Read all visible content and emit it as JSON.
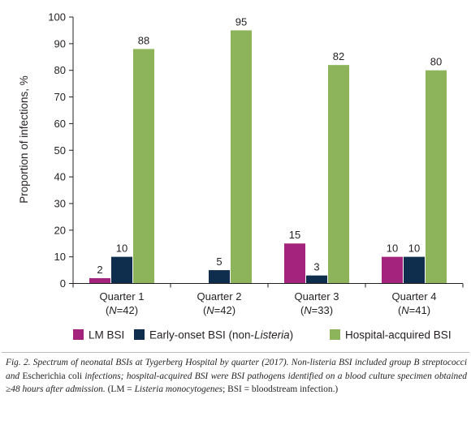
{
  "chart_data": {
    "type": "bar",
    "ylabel": "Proportion of infections, %",
    "ylim": [
      0,
      100
    ],
    "yticks": [
      0,
      10,
      20,
      30,
      40,
      50,
      60,
      70,
      80,
      90,
      100
    ],
    "categories": [
      {
        "label": "Quarter 1",
        "n_text": "(N=42)",
        "n_pre": "(",
        "n_var": "N",
        "n_post": "=42)"
      },
      {
        "label": "Quarter 2",
        "n_text": "(N=42)",
        "n_pre": "(",
        "n_var": "N",
        "n_post": "=42)"
      },
      {
        "label": "Quarter 3",
        "n_text": "(N=33)",
        "n_pre": "(",
        "n_var": "N",
        "n_post": "=33)"
      },
      {
        "label": "Quarter 4",
        "n_text": "(N=41)",
        "n_pre": "(",
        "n_var": "N",
        "n_post": "=41)"
      }
    ],
    "series": [
      {
        "name": "LM BSI",
        "color": "#a3237d",
        "values": [
          2,
          0,
          15,
          10
        ],
        "labels": [
          "2",
          "",
          "15",
          "10"
        ]
      },
      {
        "name": "Early-onset BSI (non-Listeria)",
        "name_pre": "Early-onset BSI (non-",
        "name_italic": "Listeria",
        "name_post": ")",
        "color": "#0f2d4d",
        "values": [
          10,
          5,
          3,
          10
        ],
        "labels": [
          "10",
          "5",
          "3",
          "10"
        ]
      },
      {
        "name": "Hospital-acquired BSI",
        "color": "#8db45a",
        "values": [
          88,
          95,
          82,
          80
        ],
        "labels": [
          "88",
          "95",
          "82",
          "80"
        ]
      }
    ],
    "grid": false,
    "legend": "bottom"
  },
  "caption": {
    "text": "Fig. 2. Spectrum of neonatal BSIs at Tygerberg Hospital by quarter (2017). Non-listeria BSI included group B streptococci and Escherichia coli infections; hospital-acquired BSI were BSI pathogens identified on a blood culture specimen obtained ≥48 hours after admission. (LM = Listeria monocytogenes; BSI = bloodstream infection.)",
    "p1": "Fig. 2. Spectrum of neonatal BSIs at Tygerberg Hospital by quarter (2017). Non-listeria BSI included group B streptococci and ",
    "p2": "Escherichia coli",
    "p3": " infections; hospital-acquired BSI were BSI pathogens identified on a blood culture specimen obtained ≥48 hours after admission. ",
    "p4": "(LM = ",
    "p5": "Listeria monocytogenes",
    "p6": "; BSI = bloodstream infection.)"
  }
}
